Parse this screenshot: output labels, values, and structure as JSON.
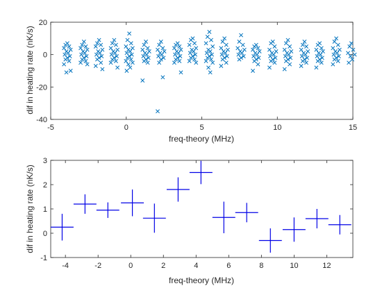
{
  "chart_data": [
    {
      "type": "scatter",
      "marker": "x",
      "color": "#0072BD",
      "xlabel": "freq-theory (MHz)",
      "ylabel": "dif in heating rate (nK/s)",
      "xlim": [
        -5,
        15
      ],
      "ylim": [
        -40,
        20
      ],
      "xticks": [
        -5,
        0,
        5,
        10,
        15
      ],
      "yticks": [
        -40,
        -20,
        0,
        20
      ],
      "grid": false,
      "clusters": [
        {
          "x_center": -3.9,
          "values": [
            7,
            6,
            5,
            4,
            3,
            2,
            1,
            0,
            -1,
            -2,
            -3,
            -4,
            -6,
            -10,
            -11
          ]
        },
        {
          "x_center": -2.8,
          "values": [
            8,
            6,
            5,
            4,
            3,
            2,
            1,
            0,
            -1,
            -2,
            -3,
            -4,
            -5,
            -6
          ]
        },
        {
          "x_center": -1.8,
          "values": [
            9,
            7,
            6,
            5,
            3,
            2,
            1,
            0,
            -1,
            -2,
            -3,
            -5,
            -7,
            -9
          ]
        },
        {
          "x_center": -0.8,
          "values": [
            9,
            7,
            6,
            4,
            3,
            2,
            1,
            0,
            -1,
            -2,
            -3,
            -4,
            -5,
            -8
          ]
        },
        {
          "x_center": 0.2,
          "values": [
            13,
            9,
            7,
            5,
            4,
            3,
            2,
            1,
            0,
            -1,
            -2,
            -3,
            -4,
            -5,
            -6,
            -8,
            -10
          ]
        },
        {
          "x_center": 1.3,
          "values": [
            8,
            6,
            4,
            3,
            2,
            1,
            0,
            -1,
            -2,
            -3,
            -4,
            -5,
            -16
          ]
        },
        {
          "x_center": 2.3,
          "values": [
            8,
            6,
            4,
            3,
            2,
            1,
            0,
            -1,
            -2,
            -3,
            -5,
            -14,
            -35
          ]
        },
        {
          "x_center": 3.4,
          "values": [
            7,
            6,
            5,
            4,
            3,
            2,
            1,
            0,
            -1,
            -2,
            -3,
            -4,
            -5,
            -11
          ]
        },
        {
          "x_center": 4.4,
          "values": [
            10,
            9,
            7,
            6,
            4,
            3,
            2,
            1,
            0,
            -1,
            -2,
            -3,
            -4,
            -5
          ]
        },
        {
          "x_center": 5.5,
          "values": [
            14,
            11,
            9,
            7,
            5,
            3,
            2,
            1,
            0,
            -1,
            -2,
            -3,
            -4,
            -5,
            -8,
            -11
          ]
        },
        {
          "x_center": 6.5,
          "values": [
            10,
            8,
            6,
            4,
            3,
            2,
            1,
            0,
            -1,
            -2,
            -3,
            -5,
            -7
          ]
        },
        {
          "x_center": 7.6,
          "values": [
            12,
            8,
            6,
            4,
            3,
            2,
            1,
            0,
            -1,
            -2,
            -3
          ]
        },
        {
          "x_center": 8.6,
          "values": [
            6,
            5,
            4,
            3,
            2,
            1,
            0,
            -1,
            -2,
            -3,
            -4,
            -6,
            -10
          ]
        },
        {
          "x_center": 9.7,
          "values": [
            8,
            7,
            5,
            3,
            2,
            1,
            0,
            -1,
            -2,
            -3,
            -4,
            -5,
            -8
          ]
        },
        {
          "x_center": 10.7,
          "values": [
            9,
            7,
            5,
            3,
            2,
            1,
            0,
            -1,
            -2,
            -3,
            -4,
            -6,
            -9
          ]
        },
        {
          "x_center": 11.8,
          "values": [
            8,
            6,
            5,
            3,
            2,
            1,
            0,
            -1,
            -2,
            -3,
            -4,
            -5,
            -7
          ]
        },
        {
          "x_center": 12.8,
          "values": [
            7,
            6,
            4,
            3,
            2,
            1,
            0,
            -1,
            -2,
            -3,
            -4,
            -5,
            -8
          ]
        },
        {
          "x_center": 13.9,
          "values": [
            10,
            8,
            6,
            4,
            3,
            2,
            1,
            0,
            -1,
            -2,
            -3,
            -4,
            -6
          ]
        },
        {
          "x_center": 14.9,
          "values": [
            7,
            5,
            3,
            1,
            0,
            -1,
            -3,
            -5
          ]
        }
      ]
    },
    {
      "type": "errorbar",
      "color": "#0000E6",
      "xlabel": "freq-theory (MHz)",
      "ylabel": "dif in heating rate (nK/s)",
      "xlim": [
        -4.9,
        13.6
      ],
      "ylim": [
        -1,
        3
      ],
      "xticks": [
        -4,
        -2,
        0,
        2,
        4,
        6,
        8,
        10,
        12
      ],
      "yticks": [
        -1,
        0,
        1,
        2,
        3
      ],
      "grid": false,
      "points": [
        {
          "x": -4.2,
          "y": 0.25,
          "xerr": 0.7,
          "yerr": 0.55
        },
        {
          "x": -2.8,
          "y": 1.2,
          "xerr": 0.7,
          "yerr": 0.4
        },
        {
          "x": -1.4,
          "y": 0.95,
          "xerr": 0.7,
          "yerr": 0.32
        },
        {
          "x": 0.1,
          "y": 1.25,
          "xerr": 0.7,
          "yerr": 0.55
        },
        {
          "x": 1.45,
          "y": 0.62,
          "xerr": 0.7,
          "yerr": 0.6
        },
        {
          "x": 2.9,
          "y": 1.8,
          "xerr": 0.7,
          "yerr": 0.5
        },
        {
          "x": 4.3,
          "y": 2.5,
          "xerr": 0.7,
          "yerr": 0.48
        },
        {
          "x": 5.7,
          "y": 0.65,
          "xerr": 0.7,
          "yerr": 0.65
        },
        {
          "x": 7.1,
          "y": 0.85,
          "xerr": 0.7,
          "yerr": 0.4
        },
        {
          "x": 8.55,
          "y": -0.3,
          "xerr": 0.7,
          "yerr": 0.5
        },
        {
          "x": 10.0,
          "y": 0.15,
          "xerr": 0.7,
          "yerr": 0.5
        },
        {
          "x": 11.4,
          "y": 0.6,
          "xerr": 0.7,
          "yerr": 0.4
        },
        {
          "x": 12.8,
          "y": 0.35,
          "xerr": 0.7,
          "yerr": 0.4
        }
      ]
    }
  ]
}
